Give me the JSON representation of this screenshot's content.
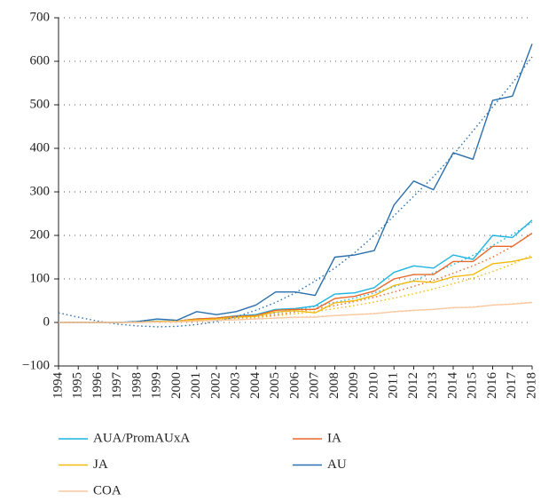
{
  "chart_data": {
    "type": "line",
    "x": [
      1994,
      1995,
      1996,
      1997,
      1998,
      1999,
      2000,
      2001,
      2002,
      2003,
      2004,
      2005,
      2006,
      2007,
      2008,
      2009,
      2010,
      2011,
      2012,
      2013,
      2014,
      2015,
      2016,
      2017,
      2018
    ],
    "xlim": [
      1994,
      2018
    ],
    "xticks": [
      1994,
      1995,
      1996,
      1997,
      1998,
      1999,
      2000,
      2001,
      2002,
      2003,
      2004,
      2005,
      2006,
      2007,
      2008,
      2009,
      2010,
      2011,
      2012,
      2013,
      2014,
      2015,
      2016,
      2017,
      2018
    ],
    "ylim": [
      -100,
      700
    ],
    "yticks": [
      {
        "value": -100,
        "label": "−100"
      },
      0,
      100,
      200,
      300,
      400,
      500,
      600,
      700
    ],
    "grid": true,
    "legend": "bottom",
    "series": [
      {
        "name": "AUA/PromAUxA",
        "color": "#1fb4e0",
        "values": [
          0,
          0,
          0,
          0,
          1,
          3,
          3,
          8,
          10,
          15,
          18,
          30,
          32,
          38,
          65,
          68,
          80,
          115,
          130,
          125,
          155,
          145,
          200,
          195,
          235
        ],
        "trend": [
          0,
          0,
          0,
          0,
          0,
          1,
          2,
          4,
          7,
          11,
          16,
          22,
          29,
          37,
          46,
          56,
          68,
          82,
          97,
          114,
          133,
          154,
          177,
          202,
          230
        ]
      },
      {
        "name": "IA",
        "color": "#e8692a",
        "values": [
          0,
          0,
          0,
          0,
          1,
          2,
          3,
          8,
          10,
          14,
          16,
          28,
          30,
          30,
          55,
          60,
          72,
          100,
          110,
          110,
          140,
          140,
          175,
          175,
          205
        ],
        "trend": [
          0,
          0,
          0,
          0,
          0,
          1,
          2,
          4,
          6,
          9,
          13,
          18,
          24,
          31,
          39,
          48,
          58,
          70,
          83,
          97,
          113,
          130,
          150,
          175,
          205
        ]
      },
      {
        "name": "JA",
        "color": "#f2b90f",
        "values": [
          0,
          0,
          0,
          0,
          1,
          2,
          3,
          6,
          8,
          12,
          14,
          24,
          27,
          22,
          45,
          50,
          62,
          85,
          95,
          92,
          105,
          110,
          135,
          140,
          150
        ],
        "trend": [
          0,
          0,
          0,
          0,
          0,
          1,
          2,
          3,
          5,
          8,
          11,
          15,
          20,
          25,
          32,
          39,
          47,
          56,
          66,
          77,
          89,
          102,
          117,
          134,
          155
        ]
      },
      {
        "name": "AU",
        "color": "#2a6fad",
        "values": [
          0,
          0,
          0,
          0,
          2,
          8,
          5,
          25,
          18,
          25,
          40,
          70,
          70,
          62,
          150,
          155,
          165,
          270,
          325,
          305,
          390,
          375,
          510,
          520,
          640
        ],
        "trend": [
          22,
          12,
          3,
          -4,
          -8,
          -10,
          -9,
          -5,
          2,
          13,
          28,
          46,
          68,
          95,
          125,
          160,
          200,
          245,
          290,
          335,
          385,
          440,
          495,
          550,
          610
        ]
      },
      {
        "name": "COA",
        "color": "#f9c9a0",
        "values": [
          0,
          0,
          0,
          0,
          0,
          1,
          1,
          3,
          5,
          6,
          8,
          10,
          12,
          12,
          16,
          18,
          20,
          25,
          28,
          30,
          34,
          35,
          40,
          42,
          46
        ],
        "trend": [
          0,
          0,
          0,
          0,
          1,
          2,
          3,
          4,
          5,
          7,
          8,
          10,
          12,
          14,
          16,
          18,
          21,
          24,
          27,
          30,
          33,
          36,
          40,
          43,
          47
        ]
      }
    ]
  }
}
